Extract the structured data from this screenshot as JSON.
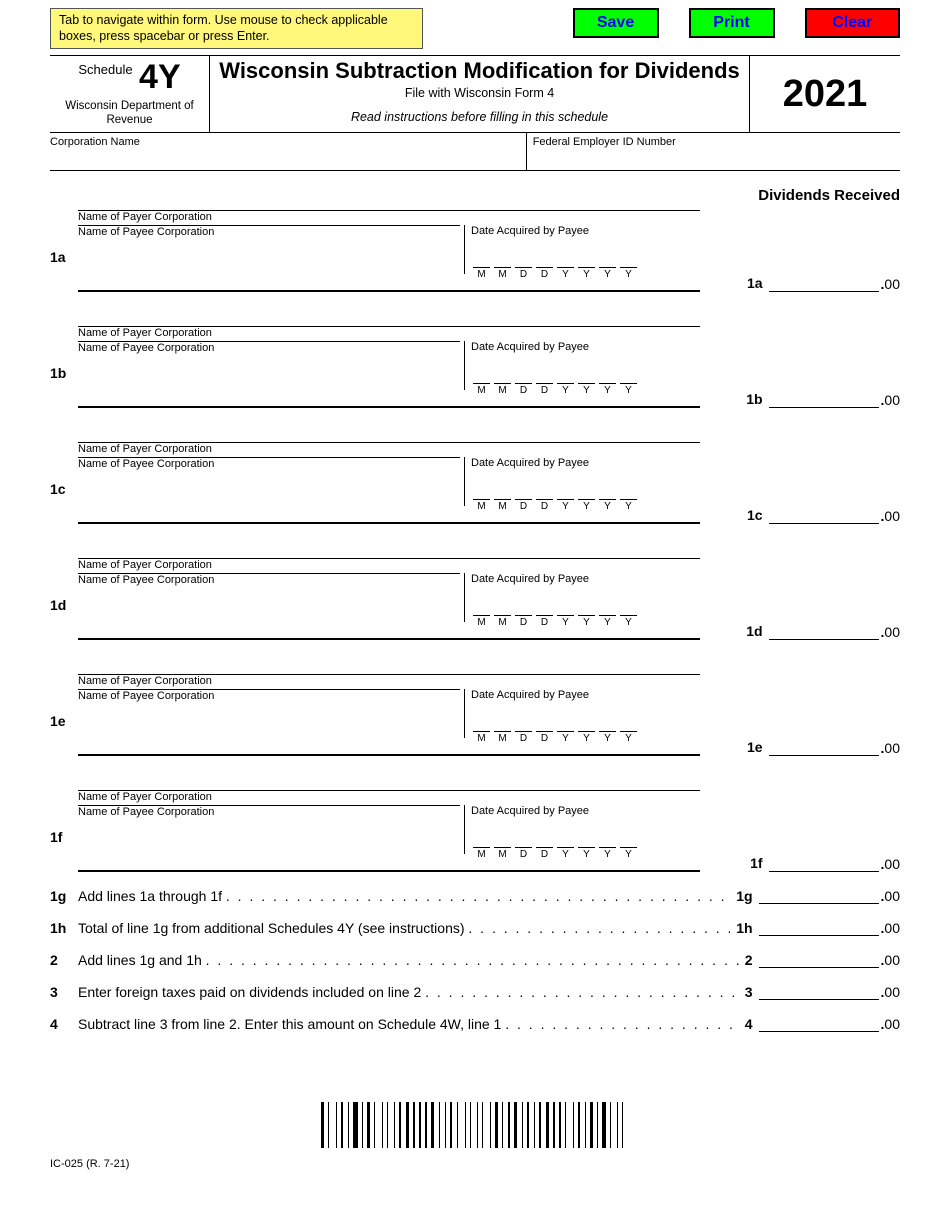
{
  "instructions_box": "Tab to navigate within form. Use mouse to check applicable boxes, press spacebar or press Enter.",
  "buttons": {
    "save": "Save",
    "print": "Print",
    "clear": "Clear"
  },
  "header": {
    "schedule_word": "Schedule",
    "schedule_code": "4Y",
    "department": "Wisconsin Department of Revenue",
    "title": "Wisconsin Subtraction Modification for Dividends",
    "file_with": "File with Wisconsin Form 4",
    "read_instr": "Read instructions before filling in this schedule",
    "year": "2021"
  },
  "id": {
    "corp_label": "Corporation Name",
    "fein_label": "Federal Employer ID Number"
  },
  "div_received": "Dividends Received",
  "entry_labels": {
    "payer": "Name of Payer Corporation",
    "payee": "Name of Payee Corporation",
    "date": "Date Acquired by Payee",
    "date_letters": [
      "M",
      "M",
      "D",
      "D",
      "Y",
      "Y",
      "Y",
      "Y"
    ]
  },
  "items": [
    "1a",
    "1b",
    "1c",
    "1d",
    "1e",
    "1f"
  ],
  "suffix": ".00",
  "summary": [
    {
      "num": "1g",
      "txt": "Add lines 1a through 1f",
      "label": "1g"
    },
    {
      "num": "1h",
      "txt": "Total of line 1g from additional Schedules 4Y (see instructions)",
      "label": "1h"
    },
    {
      "num": "2",
      "txt": "Add lines 1g and 1h",
      "label": "2"
    },
    {
      "num": "3",
      "txt": "Enter foreign taxes paid on dividends included on line 2",
      "label": "3"
    },
    {
      "num": "4",
      "txt": "Subtract line 3 from line 2. Enter this amount on Schedule 4W, line 1",
      "label": "4"
    }
  ],
  "form_no": "IC-025 (R. 7-21)",
  "colors": {
    "yellow": "#fff87a",
    "green": "#00ff00",
    "red": "#ff0000",
    "blue": "#0000ff"
  }
}
